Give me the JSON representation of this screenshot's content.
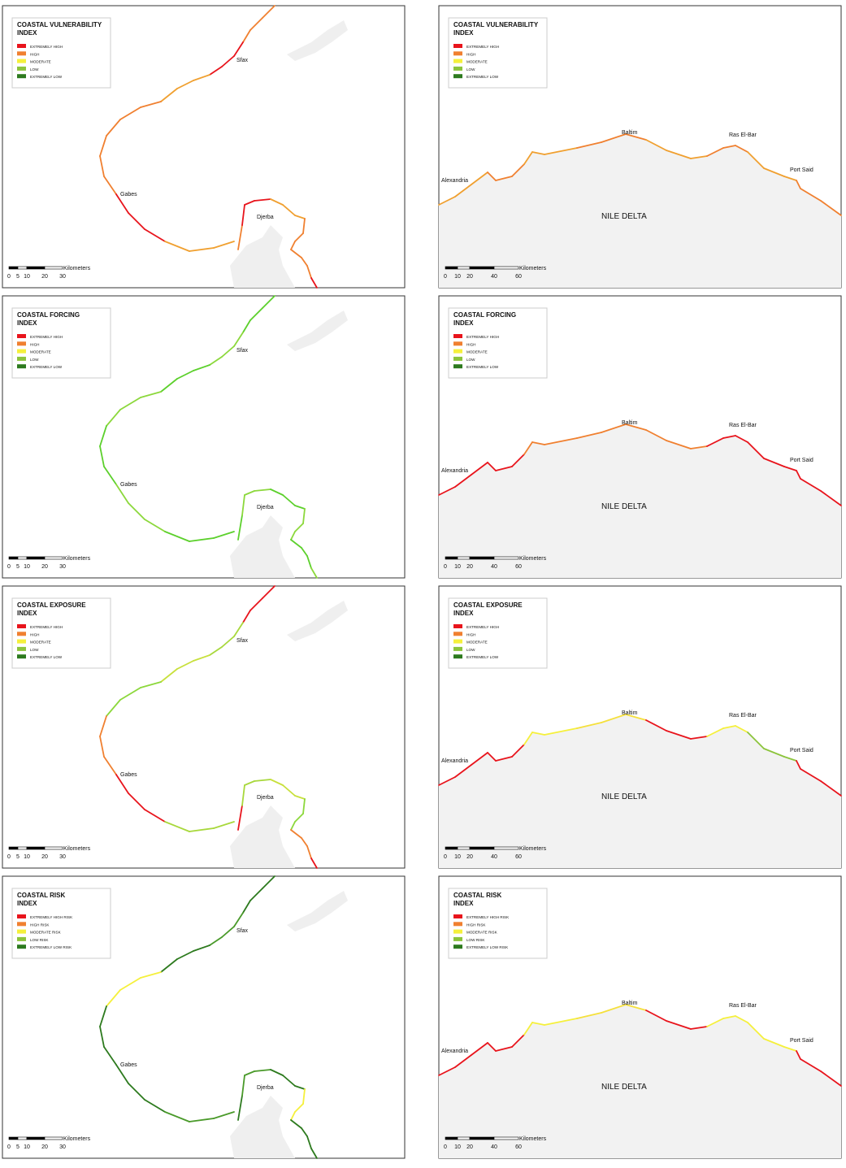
{
  "panels": [
    {
      "title": [
        "COASTAL VULNERABILITY",
        "INDEX"
      ],
      "map": "tunisia",
      "legend": [
        {
          "label": "EXTREMELY HIGH",
          "color": "#e8141c"
        },
        {
          "label": "HIGH",
          "color": "#f08030"
        },
        {
          "label": "MODERATE",
          "color": "#f5f03c"
        },
        {
          "label": "LOW",
          "color": "#8cc43c"
        },
        {
          "label": "EXTREMELY LOW",
          "color": "#2d7a1e"
        }
      ],
      "places": [
        "Sfax",
        "Gabes",
        "Djerba"
      ],
      "scale": {
        "unit": "Kilometers",
        "ticks": [
          0,
          5,
          10,
          20,
          30
        ]
      },
      "coast_colors": [
        "#f08030",
        "#e8141c",
        "#f0a030",
        "#f08030"
      ]
    },
    {
      "title": [
        "COASTAL VULNERABILITY",
        "INDEX"
      ],
      "map": "egypt",
      "legend": [
        {
          "label": "EXTREMELY HIGH",
          "color": "#e8141c"
        },
        {
          "label": "HIGH",
          "color": "#f08030"
        },
        {
          "label": "MODERATE",
          "color": "#f5f03c"
        },
        {
          "label": "LOW",
          "color": "#8cc43c"
        },
        {
          "label": "EXTREMELY LOW",
          "color": "#2d7a1e"
        }
      ],
      "places": [
        "Alexandria",
        "Baltim",
        "Ras El-Bar",
        "Port Said"
      ],
      "region": "NILE DELTA",
      "scale": {
        "unit": "Kilometers",
        "ticks": [
          0,
          10,
          20,
          40,
          60
        ]
      },
      "coast_colors": [
        "#f0a030",
        "#f08030"
      ]
    },
    {
      "title": [
        "COASTAL FORCING",
        "INDEX"
      ],
      "map": "tunisia",
      "legend": [
        {
          "label": "EXTREMELY HIGH",
          "color": "#e8141c"
        },
        {
          "label": "HIGH",
          "color": "#f08030"
        },
        {
          "label": "MODERATE",
          "color": "#f5f03c"
        },
        {
          "label": "LOW",
          "color": "#8cc43c"
        },
        {
          "label": "EXTREMELY LOW",
          "color": "#2d7a1e"
        }
      ],
      "places": [
        "Sfax",
        "Gabes",
        "Djerba"
      ],
      "scale": {
        "unit": "Kilometers",
        "ticks": [
          0,
          5,
          10,
          20,
          30
        ]
      },
      "coast_colors": [
        "#5cd02c",
        "#8cd83c"
      ]
    },
    {
      "title": [
        "COASTAL FORCING",
        "INDEX"
      ],
      "map": "egypt",
      "legend": [
        {
          "label": "EXTREMELY HIGH",
          "color": "#e8141c"
        },
        {
          "label": "HIGH",
          "color": "#f08030"
        },
        {
          "label": "MODERATE",
          "color": "#f5f03c"
        },
        {
          "label": "LOW",
          "color": "#8cc43c"
        },
        {
          "label": "EXTREMELY LOW",
          "color": "#2d7a1e"
        }
      ],
      "places": [
        "Alexandria",
        "Baltim",
        "Ras El-Bar",
        "Port Said"
      ],
      "region": "NILE DELTA",
      "scale": {
        "unit": "Kilometers",
        "ticks": [
          0,
          10,
          20,
          40,
          60
        ]
      },
      "coast_colors": [
        "#e8141c",
        "#e8141c",
        "#f08030",
        "#f08030",
        "#f08030",
        "#e8141c"
      ]
    },
    {
      "title": [
        "COASTAL EXPOSURE",
        "INDEX"
      ],
      "map": "tunisia",
      "legend": [
        {
          "label": "EXTREMELY HIGH",
          "color": "#e8141c"
        },
        {
          "label": "HIGH",
          "color": "#f08030"
        },
        {
          "label": "MODERATE",
          "color": "#f5f03c"
        },
        {
          "label": "LOW",
          "color": "#8cc43c"
        },
        {
          "label": "EXTREMELY LOW",
          "color": "#2d7a1e"
        }
      ],
      "places": [
        "Sfax",
        "Gabes",
        "Djerba"
      ],
      "scale": {
        "unit": "Kilometers",
        "ticks": [
          0,
          5,
          10,
          20,
          30
        ]
      },
      "coast_colors": [
        "#e8141c",
        "#a8d83c",
        "#c8e03c",
        "#8cd83c",
        "#f08030"
      ]
    },
    {
      "title": [
        "COASTAL EXPOSURE",
        "INDEX"
      ],
      "map": "egypt",
      "legend": [
        {
          "label": "EXTREMELY HIGH",
          "color": "#e8141c"
        },
        {
          "label": "HIGH",
          "color": "#f08030"
        },
        {
          "label": "MODERATE",
          "color": "#f5f03c"
        },
        {
          "label": "LOW",
          "color": "#8cc43c"
        },
        {
          "label": "EXTREMELY LOW",
          "color": "#2d7a1e"
        }
      ],
      "places": [
        "Alexandria",
        "Baltim",
        "Ras El-Bar",
        "Port Said"
      ],
      "region": "NILE DELTA",
      "scale": {
        "unit": "Kilometers",
        "ticks": [
          0,
          10,
          20,
          40,
          60
        ]
      },
      "coast_colors": [
        "#e8141c",
        "#e8141c",
        "#f5f03c",
        "#f5e03c",
        "#e8141c",
        "#f5f03c",
        "#8cc43c"
      ]
    },
    {
      "title": [
        "COASTAL RISK",
        "INDEX"
      ],
      "map": "tunisia",
      "legend": [
        {
          "label": "EXTREMELY HIGH RISK",
          "color": "#e8141c"
        },
        {
          "label": "HIGH RISK",
          "color": "#f08030"
        },
        {
          "label": "MODERATE RISK",
          "color": "#f5f03c"
        },
        {
          "label": "LOW RISK",
          "color": "#8cc43c"
        },
        {
          "label": "EXTREMELY LOW RISK",
          "color": "#2d7a1e"
        }
      ],
      "places": [
        "Sfax",
        "Gabes",
        "Djerba"
      ],
      "scale": {
        "unit": "Kilometers",
        "ticks": [
          0,
          5,
          10,
          20,
          30
        ]
      },
      "coast_colors": [
        "#2d7a1e",
        "#4a9a2a",
        "#2d7a1e",
        "#f5f03c",
        "#2d7a1e"
      ]
    },
    {
      "title": [
        "COASTAL RISK",
        "INDEX"
      ],
      "map": "egypt",
      "legend": [
        {
          "label": "EXTREMELY HIGH RISK",
          "color": "#e8141c"
        },
        {
          "label": "HIGH RISK",
          "color": "#f08030"
        },
        {
          "label": "MODERATE RISK",
          "color": "#f5f03c"
        },
        {
          "label": "LOW RISK",
          "color": "#8cc43c"
        },
        {
          "label": "EXTREMELY LOW RISK",
          "color": "#2d7a1e"
        }
      ],
      "places": [
        "Alexandria",
        "Baltim",
        "Ras El-Bar",
        "Port Said"
      ],
      "region": "NILE DELTA",
      "scale": {
        "unit": "Kilometers",
        "ticks": [
          0,
          10,
          20,
          40,
          60
        ]
      },
      "coast_colors": [
        "#e8141c",
        "#e8141c",
        "#f5f03c",
        "#f5e03c",
        "#e8141c",
        "#f5f03c",
        "#f5f03c"
      ]
    }
  ]
}
